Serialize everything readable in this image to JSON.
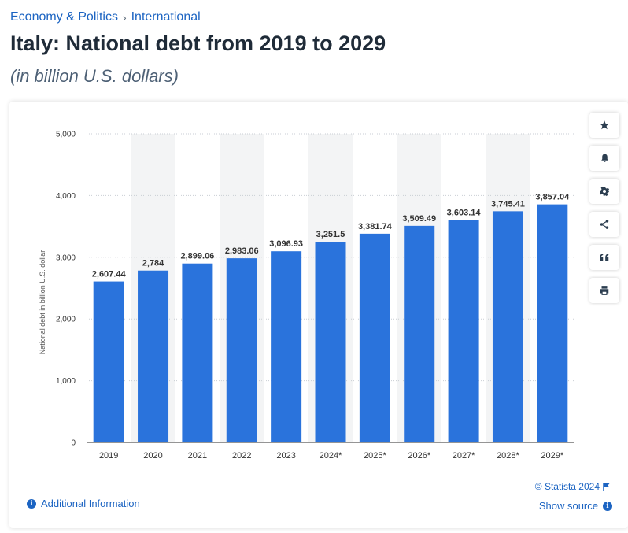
{
  "breadcrumb": {
    "items": [
      "Economy & Politics",
      "International"
    ],
    "separator": "›"
  },
  "header": {
    "title": "Italy: National debt from 2019 to 2029",
    "subtitle": "(in billion U.S. dollars)"
  },
  "toolbar": {
    "buttons": [
      "star-icon",
      "bell-icon",
      "gear-icon",
      "share-icon",
      "quote-icon",
      "print-icon"
    ]
  },
  "footer": {
    "additional_info": "Additional Information",
    "copyright": "© Statista 2024",
    "show_source": "Show source"
  },
  "colors": {
    "bar": "#2a73dc",
    "link": "#1c64c2",
    "band": "#f3f4f5"
  },
  "chart_data": {
    "type": "bar",
    "categories": [
      "2019",
      "2020",
      "2021",
      "2022",
      "2023",
      "2024*",
      "2025*",
      "2026*",
      "2027*",
      "2028*",
      "2029*"
    ],
    "values": [
      2607.44,
      2784,
      2899.06,
      2983.06,
      3096.93,
      3251.5,
      3381.74,
      3509.49,
      3603.14,
      3745.41,
      3857.04
    ],
    "value_labels": [
      "2,607.44",
      "2,784",
      "2,899.06",
      "2,983.06",
      "3,096.93",
      "3,251.5",
      "3,381.74",
      "3,509.49",
      "3,603.14",
      "3,745.41",
      "3,857.04"
    ],
    "yticks": [
      0,
      1000,
      2000,
      3000,
      4000,
      5000
    ],
    "ytick_labels": [
      "0",
      "1,000",
      "2,000",
      "3,000",
      "4,000",
      "5,000"
    ],
    "ylim": [
      0,
      5000
    ],
    "xlabel": "",
    "ylabel": "National debt in billion U.S. dollar",
    "grid": true,
    "legend": "none"
  }
}
